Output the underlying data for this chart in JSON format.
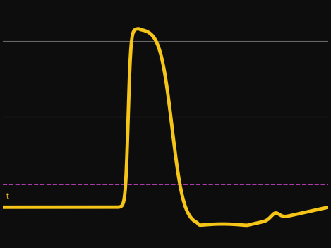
{
  "background_color": "#0d0d0d",
  "line_color": "#f5c518",
  "line_width": 3.5,
  "dashed_line_color": "#cc44cc",
  "dashed_line_y": -55,
  "grid_line_color": "#666666",
  "grid_line_y1": 40,
  "grid_line_y2": -10,
  "ylim": [
    -95,
    65
  ],
  "xlim": [
    0,
    100
  ],
  "resting_potential": -70,
  "threshold": -55,
  "peak": 48,
  "undershoot": -82,
  "label_text": "t",
  "label_fontsize": 7,
  "label_color": "#f5c518"
}
